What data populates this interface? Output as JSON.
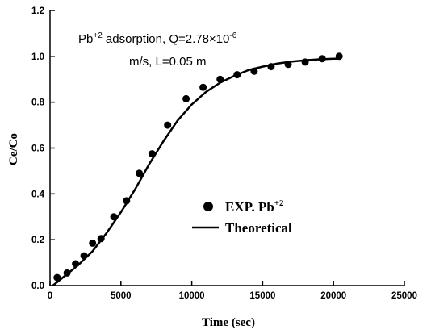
{
  "chart_data": {
    "type": "scatter",
    "xlabel": "Time (sec)",
    "ylabel": "Ce/Co",
    "xlim": [
      0,
      25000
    ],
    "ylim": [
      0,
      1.2
    ],
    "x_ticks": [
      0,
      5000,
      10000,
      15000,
      20000,
      25000
    ],
    "y_ticks": [
      0.0,
      0.2,
      0.4,
      0.6,
      0.8,
      1.0,
      1.2
    ],
    "x_tick_labels": [
      "0",
      "5000",
      "10000",
      "15000",
      "20000",
      "25000"
    ],
    "y_tick_labels": [
      "0.0",
      "0.2",
      "0.4",
      "0.6",
      "0.8",
      "1.0",
      "1.2"
    ],
    "grid": false,
    "legend_position": "center-right",
    "annotation": {
      "line1_prefix": "Pb",
      "line1_sup": "+2",
      "line1_mid": " adsorption, Q=2.78×10",
      "line1_exp": "-6",
      "line2": "m/s, L=0.05 m"
    },
    "series": [
      {
        "name": "EXP. Pb+2",
        "legend_label": "EXP. Pb",
        "legend_sup": "+2",
        "kind": "scatter",
        "color": "#000000",
        "x": [
          500,
          1200,
          1800,
          2400,
          3000,
          3600,
          4500,
          5400,
          6300,
          7200,
          8300,
          9600,
          10800,
          12000,
          13200,
          14400,
          15600,
          16800,
          18000,
          19200,
          20400
        ],
        "y": [
          0.035,
          0.055,
          0.095,
          0.13,
          0.185,
          0.205,
          0.3,
          0.37,
          0.49,
          0.575,
          0.7,
          0.815,
          0.865,
          0.9,
          0.92,
          0.935,
          0.955,
          0.965,
          0.975,
          0.99,
          1.0
        ]
      },
      {
        "name": "Theoretical",
        "legend_label": "Theoretical",
        "kind": "line",
        "color": "#000000",
        "x": [
          200,
          1000,
          2000,
          3000,
          4000,
          5000,
          6000,
          7000,
          8000,
          9000,
          10000,
          11000,
          12000,
          13000,
          14000,
          15000,
          16000,
          17000,
          18000,
          19000,
          20000,
          20400
        ],
        "y": [
          0.0,
          0.04,
          0.09,
          0.15,
          0.23,
          0.32,
          0.42,
          0.53,
          0.63,
          0.72,
          0.79,
          0.845,
          0.885,
          0.915,
          0.94,
          0.955,
          0.968,
          0.977,
          0.983,
          0.987,
          0.99,
          0.99
        ]
      }
    ]
  }
}
